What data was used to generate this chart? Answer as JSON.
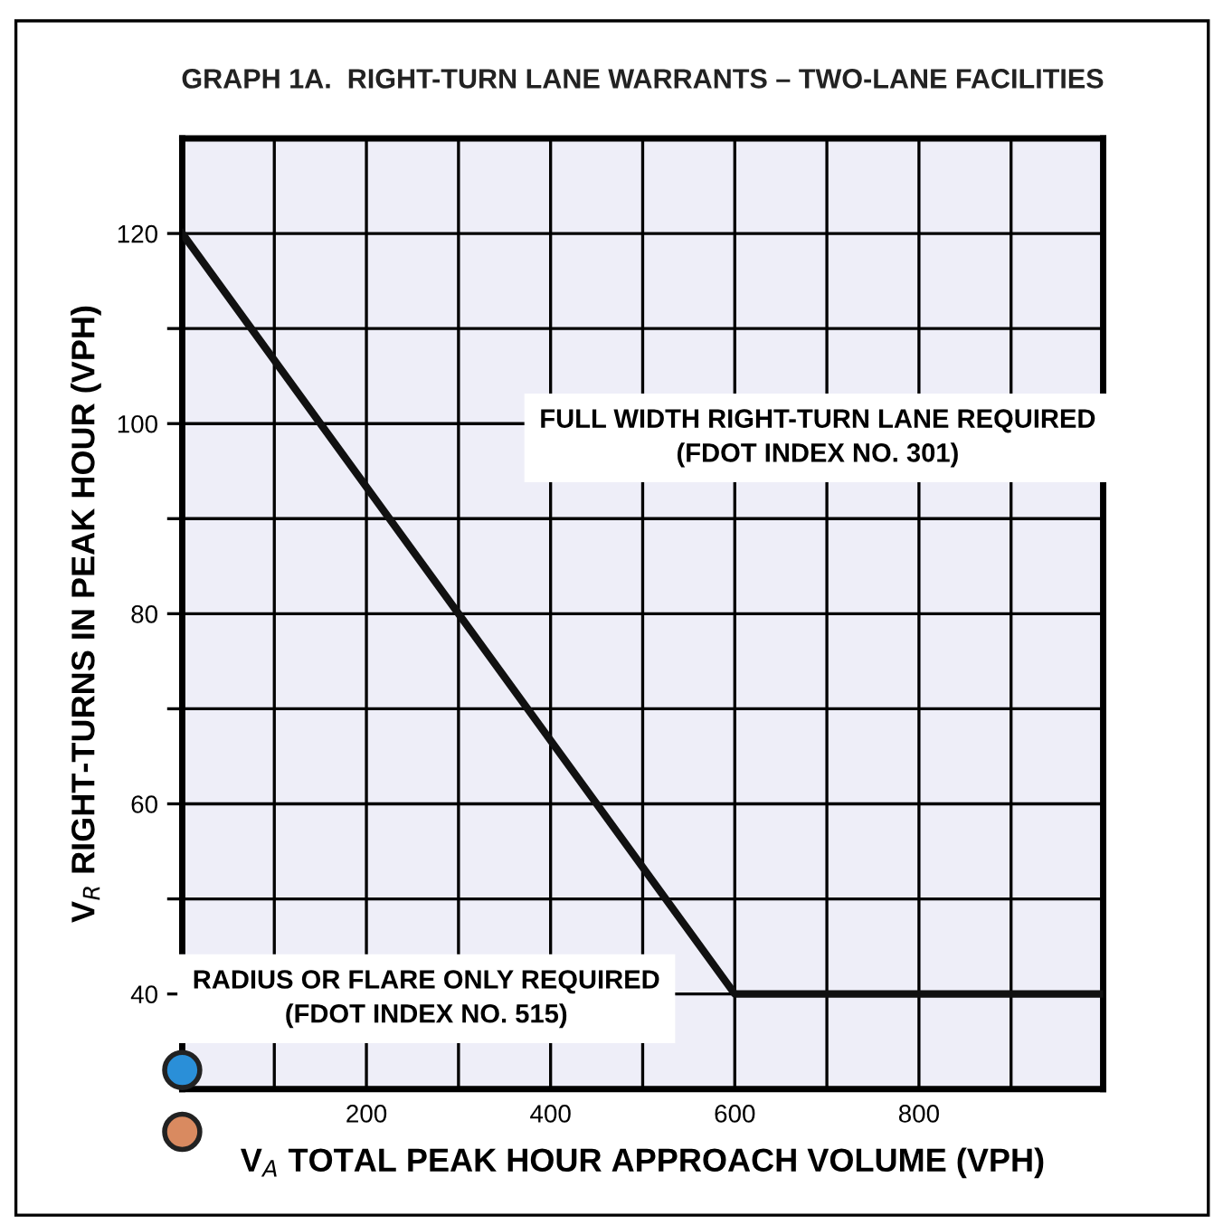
{
  "chart_data": {
    "type": "line",
    "title": "GRAPH 1A.  RIGHT-TURN LANE WARRANTS – TWO-LANE FACILITIES",
    "xlabel": "V$_{A}$ TOTAL PEAK HOUR APPROACH VOLUME (VPH)",
    "ylabel": "V$_{R}$ RIGHT-TURNS IN PEAK HOUR (VPH)",
    "annotations": [
      "FULL WIDTH RIGHT-TURN LANE REQUIRED\n(FDOT INDEX NO. 301)",
      "RADIUS OR FLARE ONLY REQUIRED\n(FDOT INDEX NO. 515)"
    ],
    "x": [
      0,
      600,
      1000
    ],
    "series": [
      {
        "color": "#111111",
        "values": [
          120,
          40,
          40
        ]
      }
    ],
    "xlim": [
      0,
      1000
    ],
    "xticks": [
      {
        "value": 100,
        "label": null
      },
      200,
      {
        "value": 300,
        "label": null
      },
      400,
      {
        "value": 500,
        "label": null
      },
      600,
      {
        "value": 700,
        "label": null
      },
      800,
      {
        "value": 900,
        "label": null
      }
    ],
    "ylim": [
      30,
      130
    ],
    "yticks": [
      {
        "value": 50,
        "label": null
      },
      40,
      60,
      {
        "value": 70,
        "label": null
      },
      80,
      {
        "value": 90,
        "label": null
      },
      100,
      {
        "value": 110,
        "label": null
      },
      120
    ],
    "grid": true,
    "legend": false,
    "marker": "none",
    "line_style": "solid"
  }
}
